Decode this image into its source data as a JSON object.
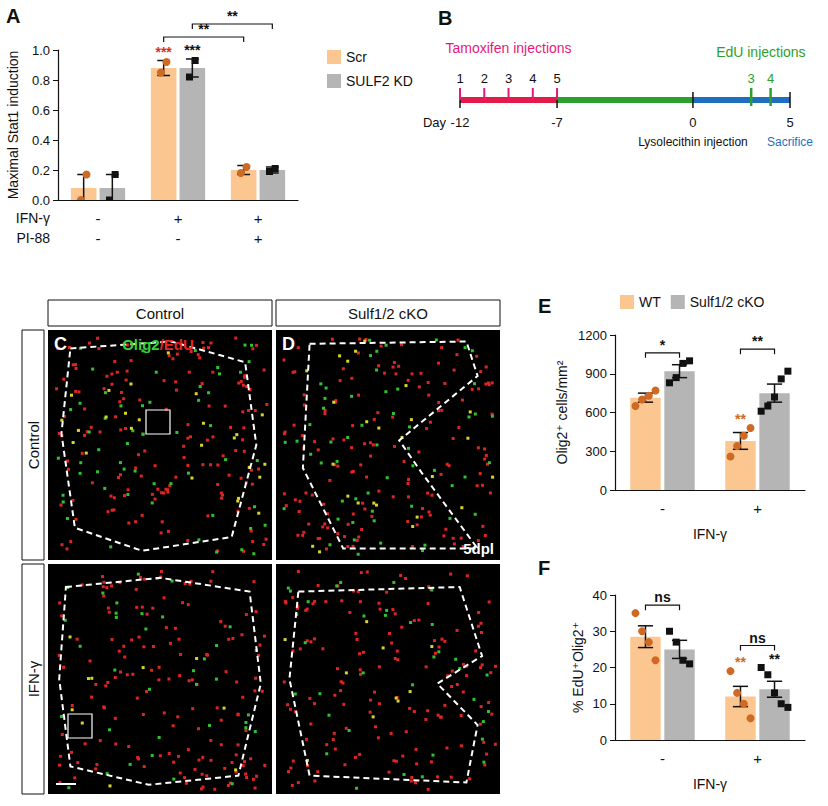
{
  "chart_data": [
    {
      "type": "bar",
      "title": "A",
      "y_label": "Maximal Stat1 induction",
      "categories": [
        null,
        null,
        null
      ],
      "conditions": [
        {
          "label": "IFN-γ",
          "values": [
            "-",
            "+",
            "+"
          ]
        },
        {
          "label": "PI-88",
          "values": [
            "-",
            "-",
            "+"
          ]
        }
      ],
      "series": [
        {
          "name": "Scr",
          "color": "#fbc690",
          "values": [
            0.08,
            0.88,
            0.2
          ],
          "errors": [
            0.09,
            0.05,
            0.03
          ],
          "points": {
            "color": "#cf6a24",
            "marker": "circle",
            "values": [
              [
                0.0,
                0.17
              ],
              [
                0.85,
                0.92
              ],
              [
                0.18,
                0.22
              ]
            ]
          }
        },
        {
          "name": "SULF2 KD",
          "color": "#b5b5b5",
          "values": [
            0.08,
            0.88,
            0.2
          ],
          "errors": [
            0.09,
            0.06,
            0.02
          ],
          "points": {
            "color": "#111111",
            "marker": "square",
            "values": [
              [
                0.0,
                0.17
              ],
              [
                0.82,
                0.93
              ],
              [
                0.19,
                0.21
              ]
            ]
          }
        }
      ],
      "ylim": [
        0,
        1
      ],
      "yticks": [
        {
          "value": 0,
          "label": "0.0"
        },
        0.2,
        0.4,
        0.6,
        0.8,
        {
          "value": 1,
          "label": "1.0"
        }
      ],
      "grid": false,
      "legend": "right",
      "annotations": [
        {
          "text": "***",
          "category": 1,
          "series": 0,
          "color": "#d7301f"
        },
        {
          "text": "***",
          "category": 1,
          "series": 1,
          "color": "#111111"
        }
      ],
      "brackets": [
        {
          "text": "**",
          "from": {
            "category": 1,
            "series": 0
          },
          "to": {
            "category": 2,
            "series": 0
          }
        },
        {
          "text": "**",
          "from": {
            "category": 1,
            "series": 1
          },
          "to": {
            "category": 2,
            "series": 1
          }
        }
      ]
    },
    {
      "type": "bar",
      "title": "E",
      "y_label": "Olig2⁺ cells/mm²",
      "categories": [
        null,
        null
      ],
      "conditions": [
        {
          "label": "IFN-γ",
          "values": [
            "-",
            "+"
          ]
        }
      ],
      "series": [
        {
          "name": "WT",
          "color": "#fbc690",
          "values": [
            715,
            380
          ],
          "errors": [
            35,
            65
          ],
          "points": {
            "color": "#cf6a24",
            "marker": "circle",
            "values": [
              [
                650,
                700,
                730,
                770
              ],
              [
                260,
                340,
                420,
                480
              ]
            ]
          }
        },
        {
          "name": "Sulf1/2 cKO",
          "color": "#b5b5b5",
          "values": [
            920,
            750
          ],
          "errors": [
            50,
            70
          ],
          "points": {
            "color": "#111111",
            "marker": "square",
            "values": [
              [
                830,
                870,
                980,
                1000
              ],
              [
                610,
                650,
                720,
                860,
                920
              ]
            ]
          }
        }
      ],
      "ylim": [
        0,
        1200
      ],
      "yticks": [
        0,
        300,
        600,
        900,
        1200
      ],
      "grid": false,
      "legend": "top",
      "annotations": [
        {
          "text": "**",
          "category": 1,
          "series": 0,
          "color": "#cf6a24"
        }
      ],
      "brackets": [
        {
          "text": "*",
          "from": {
            "category": 0,
            "series": 0
          },
          "to": {
            "category": 0,
            "series": 1
          }
        },
        {
          "text": "**",
          "from": {
            "category": 1,
            "series": 0
          },
          "to": {
            "category": 1,
            "series": 1
          }
        }
      ]
    },
    {
      "type": "bar",
      "title": "F",
      "y_label": "% EdU⁺Olig2⁺",
      "categories": [
        null,
        null
      ],
      "conditions": [
        {
          "label": "IFN-γ",
          "values": [
            "-",
            "+"
          ]
        }
      ],
      "series": [
        {
          "name": "WT",
          "color": "#fbc690",
          "values": [
            28.5,
            12
          ],
          "errors": [
            3,
            2.8
          ],
          "points": {
            "color": "#cf6a24",
            "marker": "circle",
            "values": [
              [
                35,
                30,
                27,
                22
              ],
              [
                19,
                13,
                10,
                6
              ]
            ]
          }
        },
        {
          "name": "Sulf1/2 cKO",
          "color": "#b5b5b5",
          "values": [
            25,
            14
          ],
          "errors": [
            2.5,
            2.2
          ],
          "points": {
            "color": "#111111",
            "marker": "square",
            "values": [
              [
                30,
                27,
                22,
                21
              ],
              [
                20,
                18,
                13,
                10,
                9
              ]
            ]
          }
        }
      ],
      "ylim": [
        0,
        40
      ],
      "yticks": [
        0,
        10,
        20,
        30,
        40
      ],
      "grid": false,
      "annotations": [
        {
          "text": "**",
          "category": 1,
          "series": 0,
          "color": "#cf6a24"
        },
        {
          "text": "**",
          "category": 1,
          "series": 1,
          "color": "#111111"
        }
      ],
      "brackets": [
        {
          "text": "ns",
          "from": {
            "category": 0,
            "series": 0
          },
          "to": {
            "category": 0,
            "series": 1
          }
        },
        {
          "text": "ns",
          "from": {
            "category": 1,
            "series": 0
          },
          "to": {
            "category": 1,
            "series": 1
          }
        }
      ]
    }
  ],
  "timeline": {
    "title": "B",
    "day_label": "Day",
    "days": [
      -12,
      -7,
      0,
      5
    ],
    "segments": [
      {
        "from": -12,
        "to": -7,
        "color": "#e31a4a"
      },
      {
        "from": -7,
        "to": 0,
        "color": "#2ca02c"
      },
      {
        "from": 0,
        "to": 5,
        "color": "#1f6fc0"
      }
    ],
    "injections": {
      "label": "Tamoxifen injections",
      "color": "#e6197a",
      "numbers": [
        1,
        2,
        3,
        4,
        5
      ],
      "from": -12,
      "to": -7
    },
    "edu": {
      "label": "EdU injections",
      "color": "#2ca02c",
      "days": [
        3,
        4
      ]
    },
    "events": [
      {
        "day": 0,
        "label": "Lysolecithin injection",
        "color": "#111111"
      },
      {
        "day": 5,
        "label": "Sacrifice",
        "color": "#1f6fc0"
      }
    ]
  },
  "micrographs": {
    "columns": [
      "Control",
      "Sulf1/2 cKO"
    ],
    "rows": [
      "Control",
      "IFN-γ"
    ],
    "letters": [
      "C",
      "D"
    ],
    "stain": [
      {
        "text": "Olig2",
        "color": "#35d435"
      },
      {
        "text": "/EdU",
        "color": "#ee2222"
      }
    ],
    "timepoint": "5dpl"
  }
}
